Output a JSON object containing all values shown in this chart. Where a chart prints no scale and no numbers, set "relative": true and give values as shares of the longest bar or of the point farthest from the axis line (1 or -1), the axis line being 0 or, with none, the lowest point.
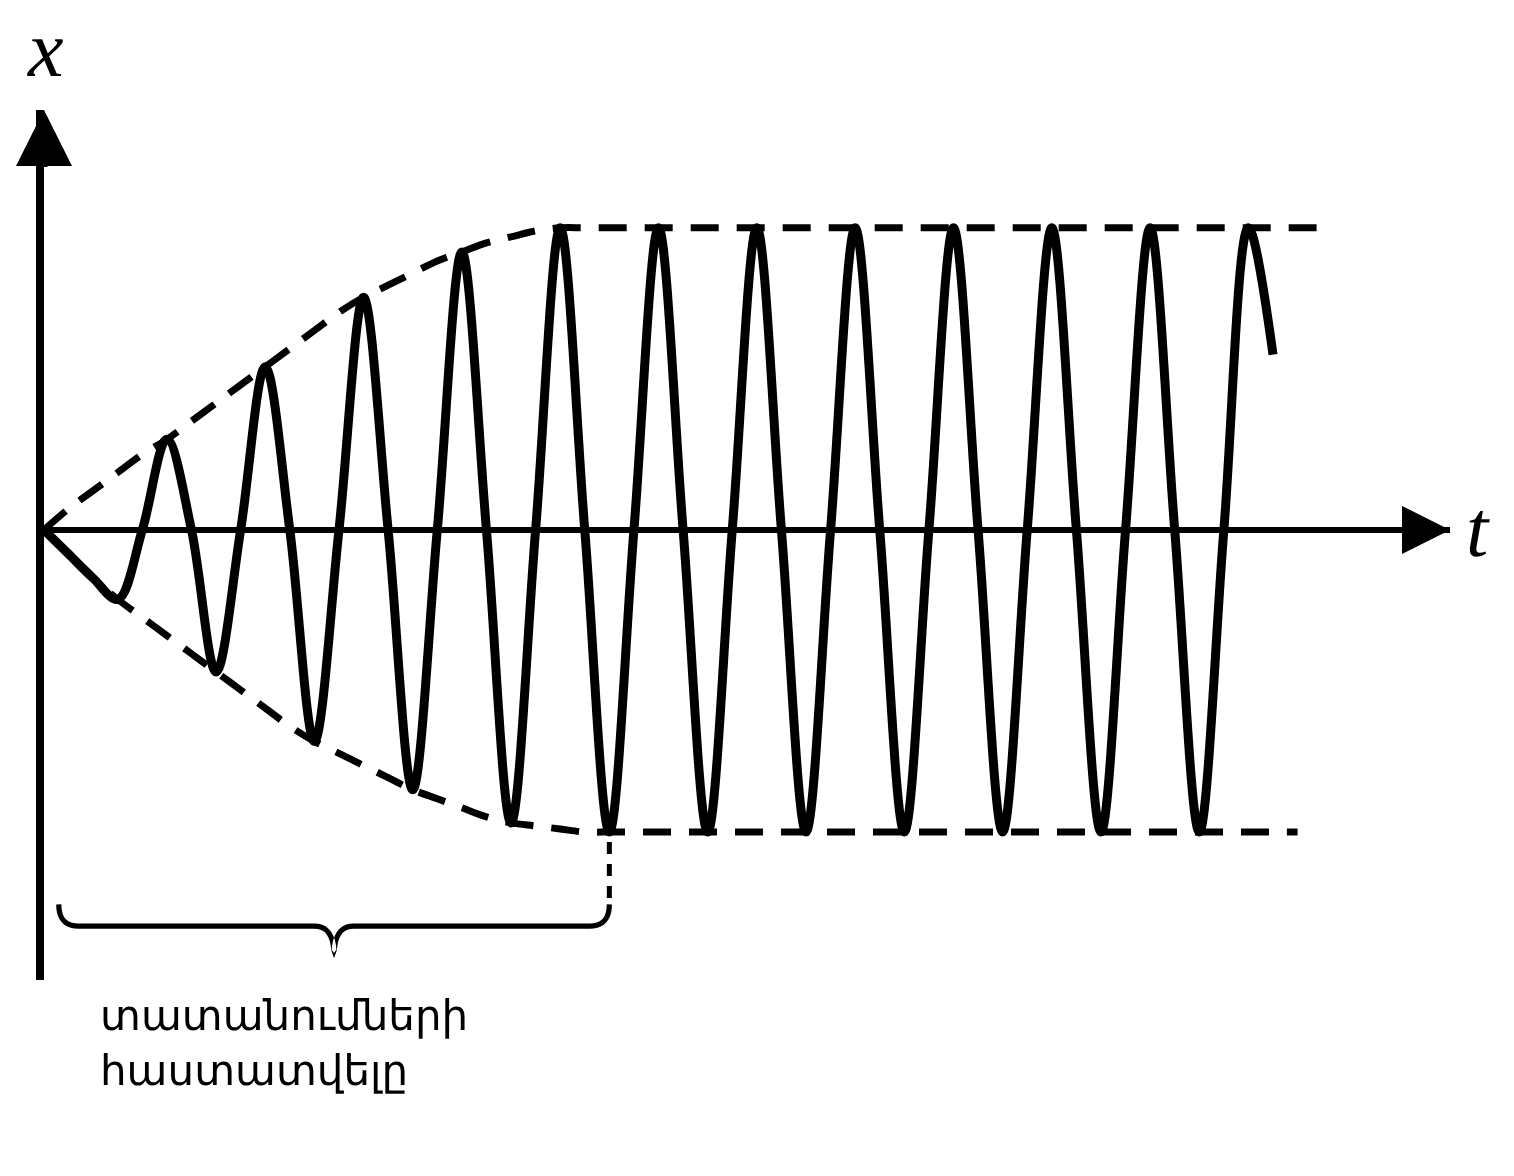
{
  "chart_data": {
    "type": "line",
    "relative": true,
    "xlabel": "t",
    "ylabel": "x",
    "categories": [
      null,
      null,
      null,
      null,
      null,
      null,
      null,
      null,
      null,
      null,
      null,
      null,
      null,
      null,
      null,
      null,
      null,
      null,
      null,
      null,
      null,
      null,
      null,
      null,
      null,
      null,
      null,
      null,
      null,
      null,
      null,
      null,
      null,
      null,
      null,
      null,
      null,
      null,
      null,
      null,
      null,
      null,
      null,
      null,
      null,
      null,
      null,
      null,
      null,
      null,
      null,
      null,
      null
    ],
    "series": [
      {
        "color": "#000000",
        "values": [
          0,
          -0.08,
          -0.16,
          -0.23,
          0,
          0.3,
          0,
          -0.47,
          0,
          0.54,
          0,
          -0.7,
          0,
          0.77,
          0,
          -0.86,
          0,
          0.92,
          0,
          -0.97,
          0,
          1,
          0,
          -1,
          0,
          1,
          0,
          -1,
          0,
          1,
          0,
          -1,
          0,
          1,
          0,
          -1,
          0,
          1,
          0,
          -1,
          0,
          1,
          0,
          -1,
          0,
          1,
          0,
          -1,
          0,
          1,
          0.58,
          null,
          null
        ]
      },
      {
        "color": "#000000",
        "line_style": "dashed",
        "values": [
          0,
          0.07,
          0.13,
          0.19,
          0.25,
          0.3,
          0.36,
          0.42,
          0.48,
          0.54,
          0.6,
          0.66,
          0.72,
          0.77,
          0.81,
          0.85,
          0.89,
          0.92,
          0.95,
          0.97,
          0.99,
          1,
          1,
          1,
          1,
          1,
          1,
          1,
          1,
          1,
          1,
          1,
          1,
          1,
          1,
          1,
          1,
          1,
          1,
          1,
          1,
          1,
          1,
          1,
          1,
          1,
          1,
          1,
          1,
          1,
          1,
          1,
          1
        ]
      },
      {
        "color": "#000000",
        "line_style": "dashed",
        "values": [
          0,
          -0.08,
          -0.16,
          -0.23,
          -0.29,
          -0.35,
          -0.41,
          -0.47,
          -0.53,
          -0.59,
          -0.65,
          -0.7,
          -0.74,
          -0.78,
          -0.82,
          -0.86,
          -0.89,
          -0.92,
          -0.95,
          -0.97,
          -0.98,
          -0.99,
          -1,
          -1,
          -1,
          -1,
          -1,
          -1,
          -1,
          -1,
          -1,
          -1,
          -1,
          -1,
          -1,
          -1,
          -1,
          -1,
          -1,
          -1,
          -1,
          -1,
          -1,
          -1,
          -1,
          -1,
          -1,
          -1,
          -1,
          -1,
          -1,
          -1,
          null
        ]
      }
    ],
    "annotations": [
      "տատանումների\nհաստատվելը"
    ]
  }
}
